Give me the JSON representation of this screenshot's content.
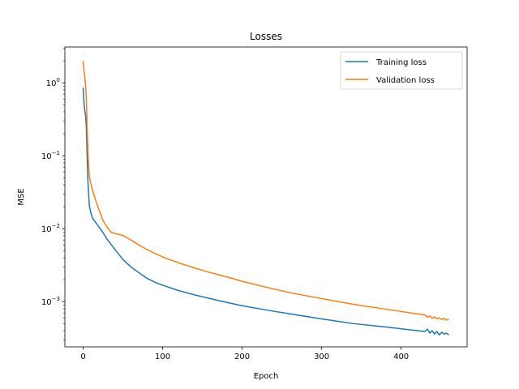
{
  "chart_data": {
    "type": "line",
    "title": "Losses",
    "xlabel": "Epoch",
    "ylabel": "MSE",
    "xlim": [
      -23,
      483
    ],
    "ylim": [
      0.00024,
      3.1
    ],
    "yscale": "log",
    "grid": false,
    "legend_position": "top-right",
    "x_ticks": [
      0,
      100,
      200,
      300,
      400
    ],
    "y_ticks": [
      {
        "value": 0.001,
        "base": "10",
        "exp": "−3"
      },
      {
        "value": 0.01,
        "base": "10",
        "exp": "−2"
      },
      {
        "value": 0.1,
        "base": "10",
        "exp": "−1"
      },
      {
        "value": 1,
        "base": "10",
        "exp": "0"
      }
    ],
    "series": [
      {
        "name": "Training loss",
        "color": "#1f77b4",
        "x": [
          0,
          1,
          2,
          3,
          4,
          5,
          6,
          7,
          8,
          10,
          12,
          15,
          20,
          25,
          30,
          40,
          50,
          60,
          70,
          80,
          90,
          100,
          120,
          140,
          160,
          180,
          200,
          230,
          260,
          300,
          340,
          380,
          420,
          430,
          433,
          436,
          439,
          442,
          445,
          448,
          451,
          454,
          457,
          460
        ],
        "y": [
          0.86,
          0.55,
          0.42,
          0.36,
          0.24,
          0.1,
          0.045,
          0.028,
          0.02,
          0.016,
          0.0138,
          0.0125,
          0.0105,
          0.0088,
          0.0072,
          0.0052,
          0.0038,
          0.003,
          0.0025,
          0.0021,
          0.00185,
          0.00168,
          0.00142,
          0.00124,
          0.0011,
          0.00098,
          0.00088,
          0.00077,
          0.00068,
          0.00058,
          0.0005,
          0.00045,
          0.0004,
          0.00039,
          0.00042,
          0.00037,
          0.0004,
          0.00036,
          0.00039,
          0.00035,
          0.00038,
          0.00036,
          0.00037,
          0.00035
        ]
      },
      {
        "name": "Validation loss",
        "color": "#ff7f0e",
        "x": [
          0,
          1,
          2,
          3,
          4,
          5,
          6,
          7,
          8,
          10,
          12,
          15,
          20,
          25,
          30,
          35,
          40,
          50,
          60,
          70,
          80,
          90,
          100,
          120,
          140,
          160,
          180,
          200,
          230,
          260,
          300,
          340,
          380,
          420,
          430,
          433,
          436,
          439,
          442,
          445,
          448,
          451,
          454,
          457,
          460
        ],
        "y": [
          2.0,
          1.5,
          1.2,
          0.95,
          0.6,
          0.25,
          0.12,
          0.07,
          0.05,
          0.04,
          0.033,
          0.026,
          0.018,
          0.013,
          0.0105,
          0.009,
          0.0086,
          0.0081,
          0.007,
          0.006,
          0.0052,
          0.0046,
          0.0041,
          0.0034,
          0.0029,
          0.0025,
          0.0022,
          0.0019,
          0.00158,
          0.00133,
          0.0011,
          0.00092,
          0.00079,
          0.00068,
          0.00066,
          0.00061,
          0.00064,
          0.00059,
          0.00062,
          0.00058,
          0.0006,
          0.00057,
          0.00059,
          0.00056,
          0.00057
        ]
      }
    ]
  }
}
